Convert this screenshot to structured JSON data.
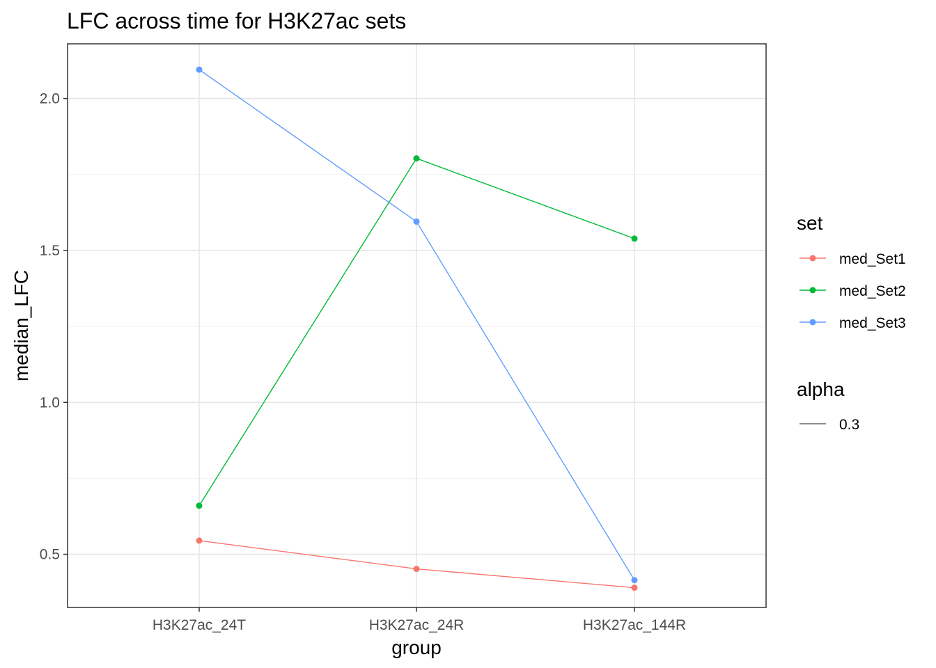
{
  "chart_data": {
    "type": "line",
    "title": "LFC across time for H3K27ac sets",
    "xlabel": "group",
    "ylabel": "median_LFC",
    "categories": [
      "H3K27ac_24T",
      "H3K27ac_24R",
      "H3K27ac_144R"
    ],
    "ylim": [
      0.325,
      2.18
    ],
    "yticks": [
      0.5,
      1.0,
      1.5,
      2.0
    ],
    "ytick_labels": [
      "0.5",
      "1.0",
      "1.5",
      "2.0"
    ],
    "grid": true,
    "series": [
      {
        "name": "med_Set1",
        "color": "#F8766D",
        "values": [
          0.545,
          0.452,
          0.39
        ]
      },
      {
        "name": "med_Set2",
        "color": "#00BA38",
        "values": [
          0.66,
          1.803,
          1.539
        ]
      },
      {
        "name": "med_Set3",
        "color": "#619CFF",
        "values": [
          2.095,
          1.595,
          0.415
        ]
      }
    ],
    "legend": {
      "placement": "right",
      "set_title": "set",
      "alpha_title": "alpha",
      "alpha_value": "0.3"
    }
  }
}
